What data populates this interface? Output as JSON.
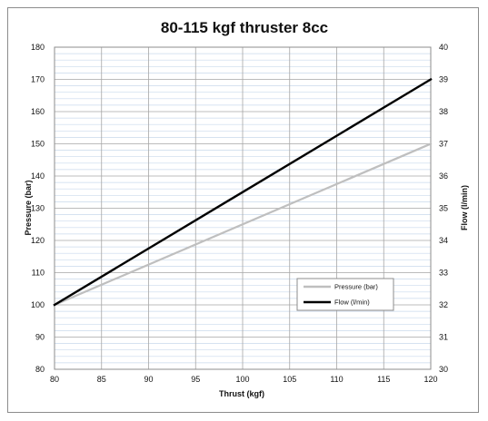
{
  "chart_data": {
    "type": "line",
    "title": "80-115 kgf thruster 8cc",
    "xlabel": "Thrust (kgf)",
    "ylabel": "Pressure (bar)",
    "y2label": "Flow (l/min)",
    "xlim": [
      80,
      120
    ],
    "ylim": [
      80,
      180
    ],
    "y2lim": [
      30,
      40
    ],
    "x_ticks": [
      "80",
      "85",
      "90",
      "95",
      "100",
      "105",
      "110",
      "115",
      "120"
    ],
    "y_ticks": [
      "80",
      "90",
      "100",
      "110",
      "120",
      "130",
      "140",
      "150",
      "160",
      "170",
      "180"
    ],
    "y2_ticks": [
      "30",
      "31",
      "32",
      "33",
      "34",
      "35",
      "36",
      "37",
      "38",
      "39",
      "40"
    ],
    "grid": true,
    "legend_position": "lower-right",
    "series": [
      {
        "name": "Pressure (bar)",
        "axis": "left",
        "color": "#bfbfbf",
        "x": [
          80,
          120
        ],
        "values": [
          100,
          150
        ]
      },
      {
        "name": "Flow (l/min)",
        "axis": "right",
        "color": "#000000",
        "x": [
          80,
          120
        ],
        "values": [
          32,
          39
        ]
      }
    ]
  }
}
